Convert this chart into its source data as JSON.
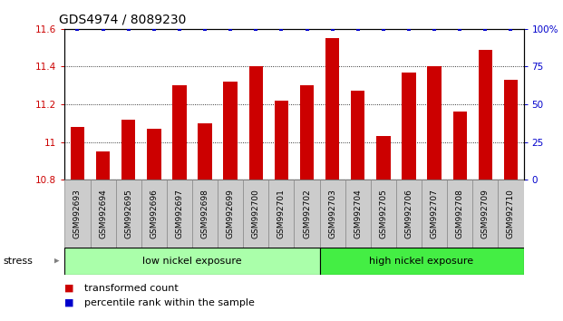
{
  "title": "GDS4974 / 8089230",
  "samples": [
    "GSM992693",
    "GSM992694",
    "GSM992695",
    "GSM992696",
    "GSM992697",
    "GSM992698",
    "GSM992699",
    "GSM992700",
    "GSM992701",
    "GSM992702",
    "GSM992703",
    "GSM992704",
    "GSM992705",
    "GSM992706",
    "GSM992707",
    "GSM992708",
    "GSM992709",
    "GSM992710"
  ],
  "bar_values": [
    11.08,
    10.95,
    11.12,
    11.07,
    11.3,
    11.1,
    11.32,
    11.4,
    11.22,
    11.3,
    11.55,
    11.27,
    11.03,
    11.37,
    11.4,
    11.16,
    11.49,
    11.33
  ],
  "percentile_values": [
    100,
    100,
    100,
    100,
    100,
    100,
    100,
    100,
    100,
    100,
    100,
    100,
    100,
    100,
    100,
    100,
    100,
    100
  ],
  "bar_color": "#cc0000",
  "percentile_color": "#0000cc",
  "ymin": 10.8,
  "ymax": 11.6,
  "yticks": [
    10.8,
    11.0,
    11.2,
    11.4,
    11.6
  ],
  "ytick_labels": [
    "10.8",
    "11",
    "11.2",
    "11.4",
    "11.6"
  ],
  "right_yticks": [
    0,
    25,
    50,
    75,
    100
  ],
  "right_yticklabels": [
    "0",
    "25",
    "50",
    "75",
    "100%"
  ],
  "low_nickel_count": 10,
  "high_nickel_count": 8,
  "low_nickel_label": "low nickel exposure",
  "high_nickel_label": "high nickel exposure",
  "stress_label": "stress",
  "legend_bar_label": "transformed count",
  "legend_pct_label": "percentile rank within the sample",
  "title_fontsize": 10,
  "tick_fontsize": 7.5,
  "label_fontsize": 8,
  "xtick_fontsize": 6.5,
  "bg_color": "#ffffff",
  "low_nickel_color": "#aaffaa",
  "high_nickel_color": "#44ee44",
  "tick_box_color": "#cccccc",
  "tick_box_edge": "#888888"
}
